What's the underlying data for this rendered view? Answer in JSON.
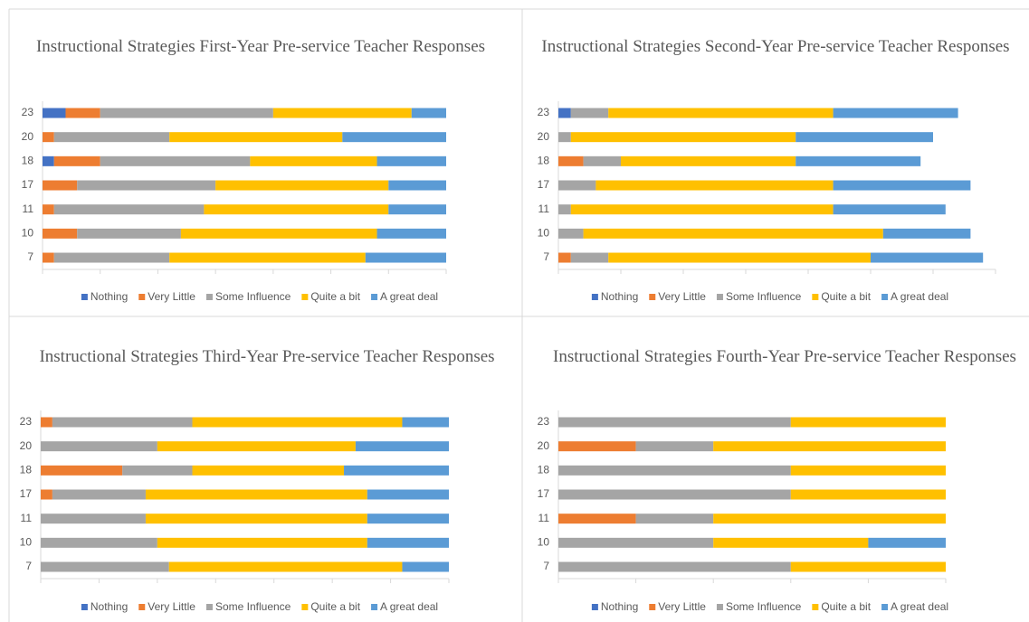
{
  "chart_data": [
    {
      "type": "stacked-bar-horizontal",
      "title": "Instructional Strategies First-Year Pre-service Teacher Responses",
      "categories": [
        "23",
        "20",
        "18",
        "17",
        "11",
        "10",
        "7"
      ],
      "series": [
        {
          "name": "Nothing",
          "color": "#4472c4",
          "values": [
            2,
            0,
            1,
            0,
            0,
            0,
            0
          ]
        },
        {
          "name": "Very Little",
          "color": "#ed7d31",
          "values": [
            3,
            1,
            4,
            3,
            1,
            3,
            1
          ]
        },
        {
          "name": "Some Influence",
          "color": "#a5a5a5",
          "values": [
            15,
            10,
            13,
            12,
            13,
            9,
            10
          ]
        },
        {
          "name": "Quite a bit",
          "color": "#ffc000",
          "values": [
            12,
            15,
            11,
            15,
            16,
            17,
            17
          ]
        },
        {
          "name": "A great deal",
          "color": "#5b9bd5",
          "values": [
            3,
            9,
            6,
            5,
            5,
            6,
            7
          ]
        }
      ],
      "xlim": [
        0,
        35
      ],
      "xticks": [
        0,
        5,
        10,
        15,
        20,
        25,
        30,
        35
      ],
      "legend": "bottom"
    },
    {
      "type": "stacked-bar-horizontal",
      "title": "Instructional Strategies Second-Year Pre-service Teacher Responses",
      "categories": [
        "23",
        "20",
        "18",
        "17",
        "11",
        "10",
        "7"
      ],
      "series": [
        {
          "name": "Nothing",
          "color": "#4472c4",
          "values": [
            1,
            0,
            0,
            0,
            0,
            0,
            0
          ]
        },
        {
          "name": "Very Little",
          "color": "#ed7d31",
          "values": [
            0,
            0,
            2,
            0,
            0,
            0,
            1
          ]
        },
        {
          "name": "Some Influence",
          "color": "#a5a5a5",
          "values": [
            3,
            1,
            3,
            3,
            1,
            2,
            3
          ]
        },
        {
          "name": "Quite a bit",
          "color": "#ffc000",
          "values": [
            18,
            18,
            14,
            19,
            21,
            24,
            21
          ]
        },
        {
          "name": "A great deal",
          "color": "#5b9bd5",
          "values": [
            10,
            11,
            10,
            11,
            9,
            7,
            9
          ]
        }
      ],
      "xlim": [
        0,
        35
      ],
      "xticks": [
        0,
        5,
        10,
        15,
        20,
        25,
        30,
        35
      ],
      "legend": "bottom"
    },
    {
      "type": "stacked-bar-horizontal",
      "title": "Instructional Strategies Third-Year Pre-service Teacher Responses",
      "categories": [
        "23",
        "20",
        "18",
        "17",
        "11",
        "10",
        "7"
      ],
      "series": [
        {
          "name": "Nothing",
          "color": "#4472c4",
          "values": [
            0,
            0,
            0,
            0,
            0,
            0,
            0
          ]
        },
        {
          "name": "Very Little",
          "color": "#ed7d31",
          "values": [
            1,
            0,
            7,
            1,
            0,
            0,
            0
          ]
        },
        {
          "name": "Some Influence",
          "color": "#a5a5a5",
          "values": [
            12,
            10,
            6,
            8,
            9,
            10,
            11
          ]
        },
        {
          "name": "Quite a bit",
          "color": "#ffc000",
          "values": [
            18,
            17,
            13,
            19,
            19,
            18,
            20
          ]
        },
        {
          "name": "A great deal",
          "color": "#5b9bd5",
          "values": [
            4,
            8,
            9,
            7,
            7,
            7,
            4
          ]
        }
      ],
      "xlim": [
        0,
        35
      ],
      "xticks": [
        0,
        5,
        10,
        15,
        20,
        25,
        30,
        35
      ],
      "legend": "bottom"
    },
    {
      "type": "stacked-bar-horizontal",
      "title": "Instructional Strategies Fourth-Year Pre-service Teacher Responses",
      "categories": [
        "23",
        "20",
        "18",
        "17",
        "11",
        "10",
        "7"
      ],
      "series": [
        {
          "name": "Nothing",
          "color": "#4472c4",
          "values": [
            0,
            0,
            0,
            0,
            0,
            0,
            0
          ]
        },
        {
          "name": "Very Little",
          "color": "#ed7d31",
          "values": [
            0,
            1,
            0,
            0,
            1,
            0,
            0
          ]
        },
        {
          "name": "Some Influence",
          "color": "#a5a5a5",
          "values": [
            3,
            1,
            3,
            3,
            1,
            2,
            3
          ]
        },
        {
          "name": "Quite a bit",
          "color": "#ffc000",
          "values": [
            2,
            3,
            2,
            2,
            3,
            2,
            2
          ]
        },
        {
          "name": "A great deal",
          "color": "#5b9bd5",
          "values": [
            0,
            0,
            0,
            0,
            0,
            1,
            0
          ]
        }
      ],
      "xlim": [
        0,
        5
      ],
      "xticks": [
        0,
        1,
        2,
        3,
        4,
        5
      ],
      "legend": "bottom"
    }
  ]
}
